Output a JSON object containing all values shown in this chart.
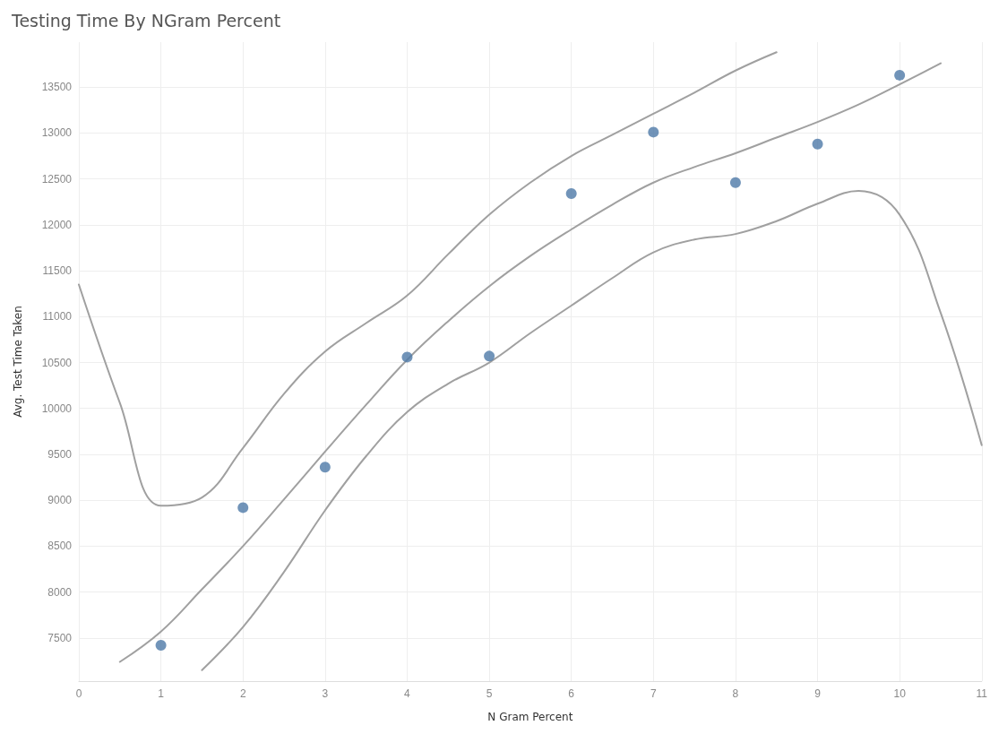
{
  "chart_data": {
    "type": "scatter",
    "title": "Testing Time By NGram Percent",
    "xlabel": "N Gram Percent",
    "ylabel": "Avg. Test Time Taken",
    "xlim": [
      0,
      11
    ],
    "xticks": [
      0,
      1,
      2,
      3,
      4,
      5,
      6,
      7,
      8,
      9,
      10,
      11
    ],
    "ylim": [
      7030,
      13990
    ],
    "yticks": [
      7500,
      8000,
      8500,
      9000,
      9500,
      10000,
      10500,
      11000,
      11500,
      12000,
      12500,
      13000,
      13500
    ],
    "grid": true,
    "marker": "circle",
    "series": [
      {
        "color": "#4e79a7",
        "x": [
          1,
          2,
          3,
          4,
          5,
          6,
          7,
          8,
          9,
          10
        ],
        "values": [
          7420,
          8920,
          9360,
          10560,
          10570,
          12340,
          13010,
          12460,
          12880,
          13630
        ]
      },
      {
        "type": "line",
        "color": "#a0a0a0",
        "marker": "none",
        "line_style": "solid",
        "x": [
          0.5,
          1,
          1.5,
          2,
          2.5,
          3,
          3.5,
          4,
          4.5,
          5,
          5.5,
          6,
          6.5,
          7,
          7.5,
          8,
          8.5,
          9,
          9.5,
          10,
          10.5
        ],
        "values": [
          7240,
          7570,
          8030,
          8500,
          9010,
          9530,
          10040,
          10530,
          10950,
          11330,
          11660,
          11950,
          12220,
          12460,
          12630,
          12780,
          12950,
          13120,
          13310,
          13530,
          13760
        ]
      },
      {
        "type": "line",
        "color": "#a0a0a0",
        "marker": "none",
        "line_style": "solid",
        "x": [
          1.5,
          2,
          2.5,
          3,
          3.5,
          4,
          4.5,
          5,
          5.5,
          6,
          6.5,
          7,
          7.5,
          8,
          8.5,
          9,
          9.5,
          10,
          10.5,
          11
        ],
        "values": [
          7150,
          7620,
          8220,
          8890,
          9480,
          9960,
          10270,
          10500,
          10820,
          11120,
          11420,
          11700,
          11840,
          11900,
          12040,
          12230,
          12370,
          12110,
          11040,
          9600
        ]
      },
      {
        "type": "line",
        "color": "#a0a0a0",
        "marker": "none",
        "line_style": "solid",
        "x": [
          0,
          0.5,
          1,
          1.5,
          2,
          2.5,
          3,
          3.5,
          4,
          4.5,
          5,
          5.5,
          6,
          6.5,
          7,
          7.5,
          8,
          8.5
        ],
        "values": [
          11350,
          10060,
          8940,
          9030,
          9570,
          10160,
          10620,
          10930,
          11230,
          11680,
          12110,
          12460,
          12750,
          12980,
          13210,
          13440,
          13680,
          13880
        ]
      }
    ]
  }
}
